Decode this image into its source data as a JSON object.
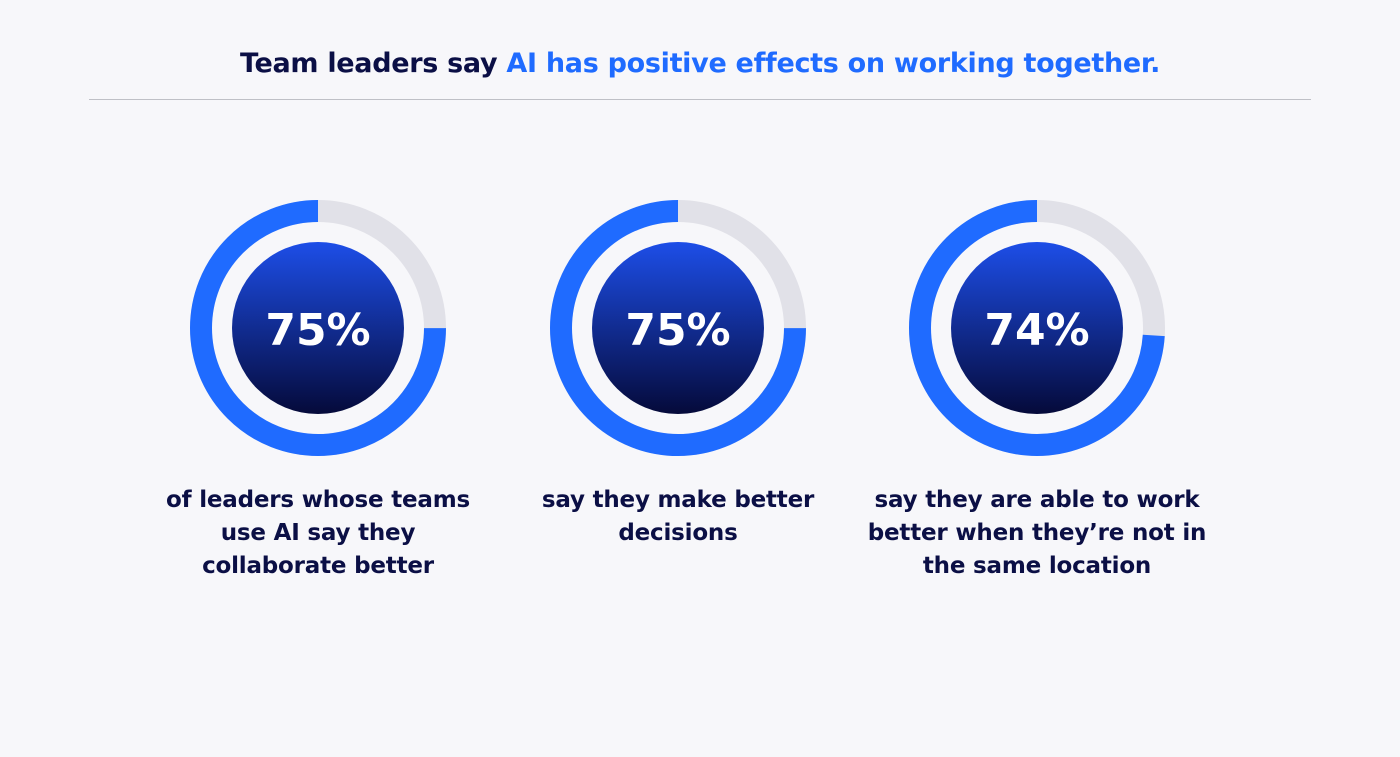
{
  "title": {
    "lead": "Team leaders say ",
    "highlight": "AI has positive effects on working together."
  },
  "colors": {
    "accent": "#1f6bff",
    "track": "#e1e1e8",
    "inner_top": "#1d4ee8",
    "inner_bottom": "#050a3a",
    "text_dark": "#0b0f45"
  },
  "chart_data": {
    "type": "pie",
    "title": "Team leaders say AI has positive effects on working together.",
    "unit": "%",
    "max": 100,
    "items": [
      {
        "value": 75,
        "label": "75%",
        "caption": "of leaders whose teams use AI say they collaborate better"
      },
      {
        "value": 75,
        "label": "75%",
        "caption": "say they make better decisions"
      },
      {
        "value": 74,
        "label": "74%",
        "caption": "say they are able to work better when they’re not in the same location"
      }
    ]
  }
}
